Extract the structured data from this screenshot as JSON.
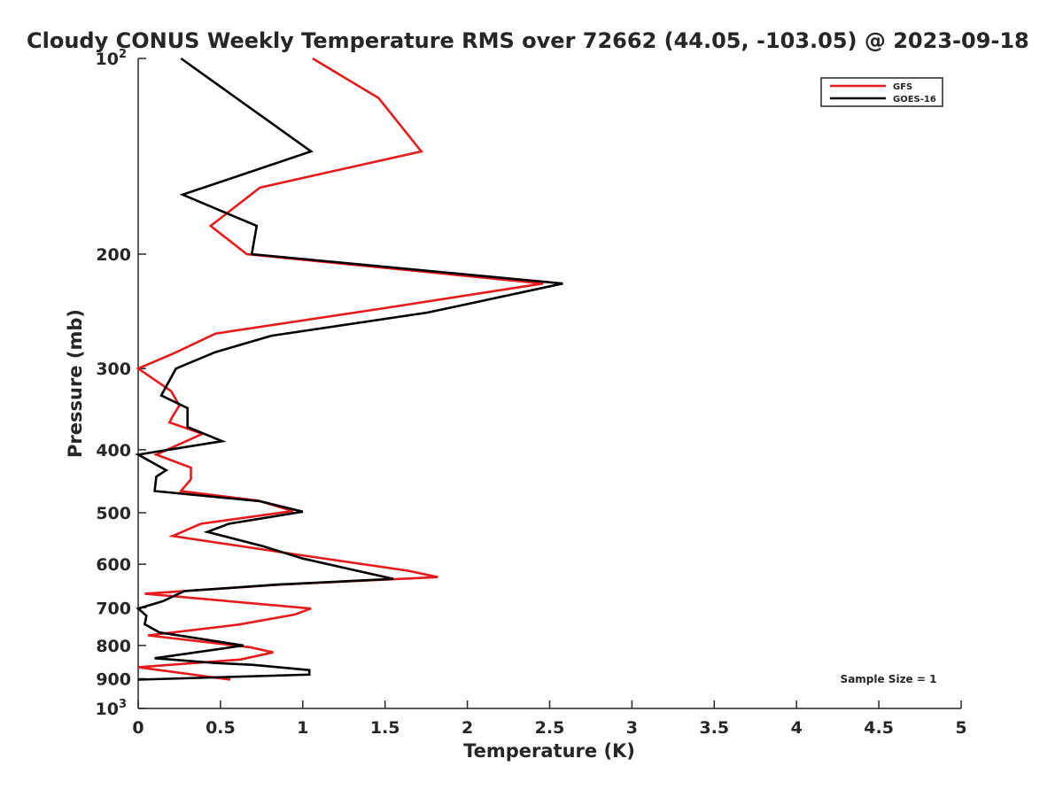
{
  "chart_data": {
    "type": "line",
    "title": "Cloudy CONUS Weekly Temperature RMS over 72662 (44.05, -103.05) @ 2023-09-18",
    "xlabel": "Temperature (K)",
    "ylabel": "Pressure (mb)",
    "xlim": [
      0,
      5
    ],
    "ylim": [
      100,
      1000
    ],
    "y_scale": "log",
    "y_reversed": true,
    "x_ticks": [
      "0",
      "0.5",
      "1",
      "1.5",
      "2",
      "2.5",
      "3",
      "3.5",
      "4",
      "4.5",
      "5"
    ],
    "y_ticks": [
      {
        "value": 100,
        "base": "10",
        "exp": "2"
      },
      {
        "value": 200,
        "label": "200"
      },
      {
        "value": 300,
        "label": "300"
      },
      {
        "value": 400,
        "label": "400"
      },
      {
        "value": 500,
        "label": "500"
      },
      {
        "value": 600,
        "label": "600"
      },
      {
        "value": 700,
        "label": "700"
      },
      {
        "value": 800,
        "label": "800"
      },
      {
        "value": 900,
        "label": "900"
      },
      {
        "value": 1000,
        "base": "10",
        "exp": "3"
      }
    ],
    "grid": false,
    "legend_position": "top-right",
    "annotation": "Sample Size = 1",
    "series": [
      {
        "name": "GFS",
        "color": "#e41a1c",
        "points": [
          [
            1.06,
            100
          ],
          [
            1.46,
            115
          ],
          [
            1.72,
            139
          ],
          [
            0.74,
            158
          ],
          [
            0.44,
            181
          ],
          [
            0.66,
            200
          ],
          [
            2.46,
            222
          ],
          [
            1.46,
            243
          ],
          [
            0.47,
            265
          ],
          [
            0.22,
            284
          ],
          [
            0.0,
            300
          ],
          [
            0.2,
            325
          ],
          [
            0.25,
            342
          ],
          [
            0.21,
            355
          ],
          [
            0.19,
            363
          ],
          [
            0.39,
            378
          ],
          [
            0.11,
            407
          ],
          [
            0.32,
            426
          ],
          [
            0.32,
            444
          ],
          [
            0.26,
            463
          ],
          [
            0.73,
            479
          ],
          [
            0.94,
            497
          ],
          [
            0.38,
            520
          ],
          [
            0.21,
            543
          ],
          [
            0.97,
            580
          ],
          [
            1.64,
            614
          ],
          [
            1.82,
            628
          ],
          [
            0.86,
            645
          ],
          [
            0.04,
            666
          ],
          [
            1.05,
            702
          ],
          [
            0.95,
            717
          ],
          [
            0.61,
            743
          ],
          [
            0.06,
            772
          ],
          [
            0.68,
            805
          ],
          [
            0.82,
            820
          ],
          [
            0.62,
            841
          ],
          [
            0.0,
            864
          ],
          [
            0.56,
            903
          ]
        ]
      },
      {
        "name": "GOES-16",
        "color": "#000000",
        "points": [
          [
            0.26,
            100
          ],
          [
            1.05,
            139
          ],
          [
            0.27,
            162
          ],
          [
            0.72,
            181
          ],
          [
            0.69,
            200
          ],
          [
            2.58,
            222
          ],
          [
            1.76,
            246
          ],
          [
            0.81,
            267
          ],
          [
            0.47,
            283
          ],
          [
            0.23,
            300
          ],
          [
            0.14,
            330
          ],
          [
            0.3,
            345
          ],
          [
            0.3,
            369
          ],
          [
            0.51,
            388
          ],
          [
            0.0,
            407
          ],
          [
            0.17,
            430
          ],
          [
            0.11,
            440
          ],
          [
            0.1,
            463
          ],
          [
            0.74,
            480
          ],
          [
            1.0,
            498
          ],
          [
            0.55,
            520
          ],
          [
            0.42,
            535
          ],
          [
            0.76,
            563
          ],
          [
            1.0,
            588
          ],
          [
            1.55,
            632
          ],
          [
            0.84,
            645
          ],
          [
            0.28,
            660
          ],
          [
            0.15,
            684
          ],
          [
            0.0,
            702
          ],
          [
            0.05,
            720
          ],
          [
            0.04,
            742
          ],
          [
            0.13,
            764
          ],
          [
            0.64,
            800
          ],
          [
            0.1,
            837
          ],
          [
            0.46,
            851
          ],
          [
            0.7,
            857
          ],
          [
            1.04,
            873
          ],
          [
            1.04,
            887
          ],
          [
            0.0,
            903
          ]
        ]
      }
    ]
  }
}
